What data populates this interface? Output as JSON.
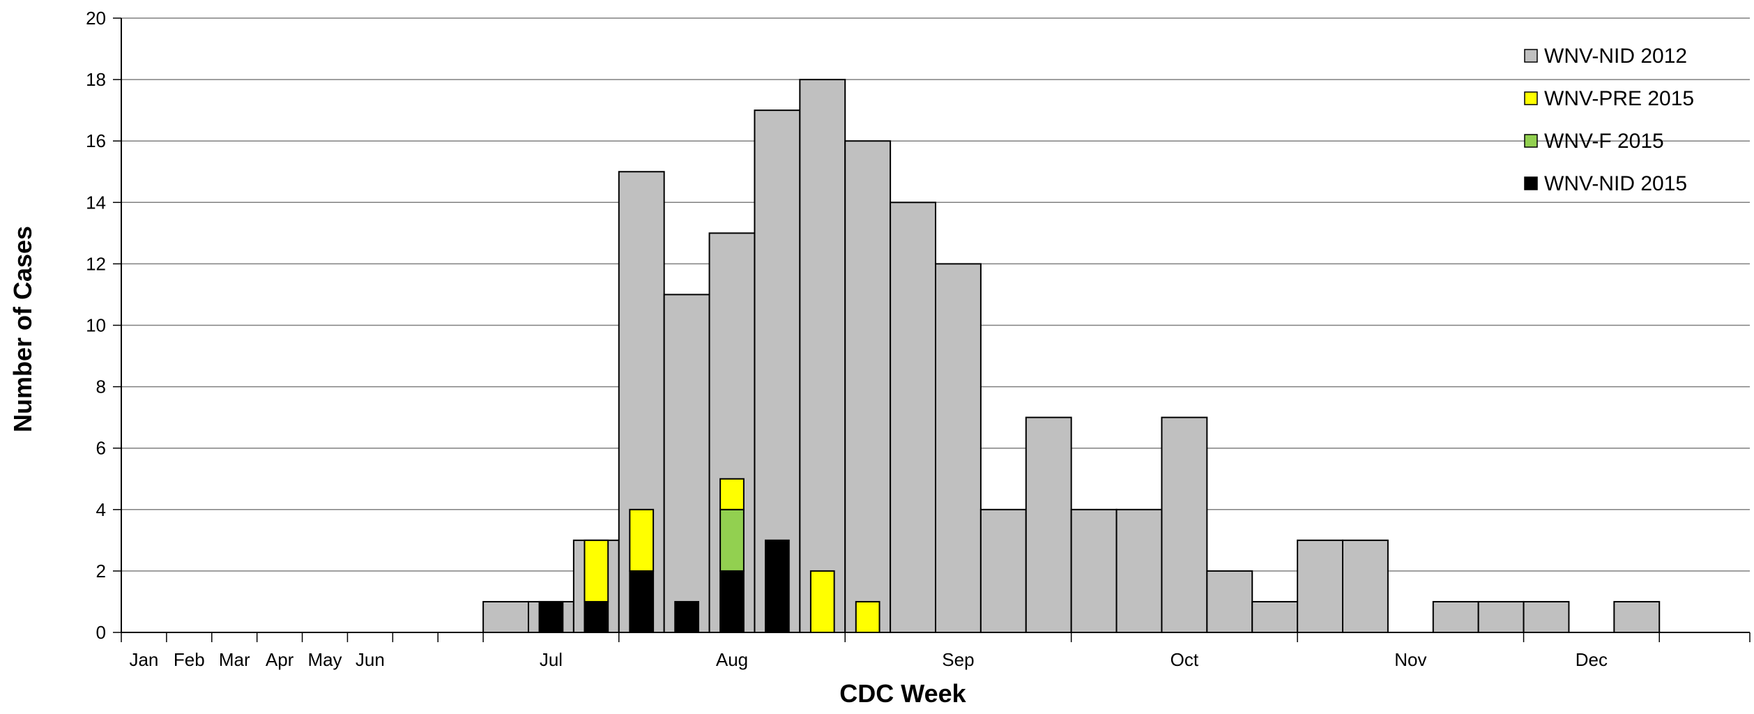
{
  "chart_data": {
    "type": "bar",
    "stacked": true,
    "xlabel": "CDC Week",
    "ylabel": "Number of  Cases",
    "ylim": [
      0,
      20
    ],
    "yticks": [
      "0",
      "2",
      "4",
      "6",
      "8",
      "10",
      "12",
      "14",
      "16",
      "18",
      "20"
    ],
    "grid": true,
    "legend_position": "top-right",
    "month_labels": [
      {
        "label": "Jan",
        "week": 0.5
      },
      {
        "label": "Feb",
        "week": 1.5
      },
      {
        "label": "Mar",
        "week": 2.5
      },
      {
        "label": "Apr",
        "week": 3.5
      },
      {
        "label": "May",
        "week": 4.5
      },
      {
        "label": "Jun",
        "week": 5.5
      },
      {
        "label": "Jul",
        "week": 9.5
      },
      {
        "label": "Aug",
        "week": 13.5
      },
      {
        "label": "Sep",
        "week": 18.5
      },
      {
        "label": "Oct",
        "week": 23.5
      },
      {
        "label": "Nov",
        "week": 28.5
      },
      {
        "label": "Dec",
        "week": 32.5
      }
    ],
    "week_slots": 36,
    "background_series": {
      "name": "WNV-NID 2012",
      "color": "#c0c0c0",
      "bars": [
        {
          "week": 8,
          "value": 1
        },
        {
          "week": 9,
          "value": 1
        },
        {
          "week": 10,
          "value": 3
        },
        {
          "week": 11,
          "value": 15
        },
        {
          "week": 12,
          "value": 11
        },
        {
          "week": 13,
          "value": 13
        },
        {
          "week": 14,
          "value": 17
        },
        {
          "week": 15,
          "value": 18
        },
        {
          "week": 16,
          "value": 16
        },
        {
          "week": 17,
          "value": 14
        },
        {
          "week": 18,
          "value": 12
        },
        {
          "week": 19,
          "value": 4
        },
        {
          "week": 20,
          "value": 7
        },
        {
          "week": 21,
          "value": 4
        },
        {
          "week": 22,
          "value": 4
        },
        {
          "week": 23,
          "value": 7
        },
        {
          "week": 24,
          "value": 2
        },
        {
          "week": 25,
          "value": 1
        },
        {
          "week": 26,
          "value": 3
        },
        {
          "week": 27,
          "value": 3
        },
        {
          "week": 29,
          "value": 1
        },
        {
          "week": 30,
          "value": 1
        },
        {
          "week": 31,
          "value": 1
        },
        {
          "week": 33,
          "value": 1
        }
      ]
    },
    "stacked_series": [
      {
        "name": "WNV-NID 2015",
        "color": "#000000",
        "values": {
          "9": 1,
          "10": 1,
          "11": 2,
          "12": 1,
          "13": 2,
          "14": 3
        }
      },
      {
        "name": "WNV-F 2015",
        "color": "#92d050",
        "values": {
          "13": 2
        }
      },
      {
        "name": "WNV-PRE 2015",
        "color": "#ffff00",
        "values": {
          "10": 2,
          "11": 2,
          "13": 1,
          "15": 2,
          "16": 1
        }
      }
    ],
    "legend": [
      {
        "name": "WNV-NID 2012",
        "color": "#c0c0c0"
      },
      {
        "name": "WNV-PRE 2015",
        "color": "#ffff00"
      },
      {
        "name": "WNV-F 2015",
        "color": "#92d050"
      },
      {
        "name": "WNV-NID 2015",
        "color": "#000000"
      }
    ]
  }
}
